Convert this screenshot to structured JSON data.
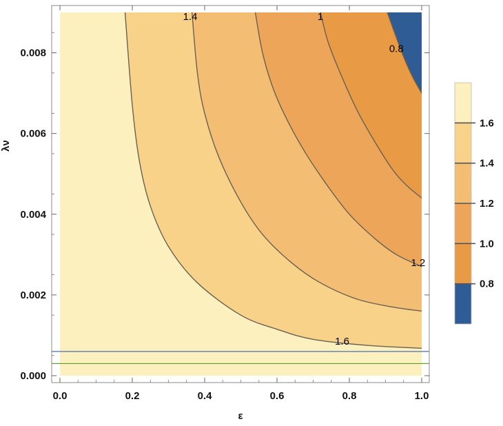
{
  "chart_data": {
    "type": "contour",
    "title": "",
    "xlabel": "ε",
    "ylabel": "λν",
    "xlim": [
      0,
      1
    ],
    "ylim": [
      0,
      0.009
    ],
    "x_ticks": [
      "0.0",
      "0.2",
      "0.4",
      "0.6",
      "0.8",
      "1.0"
    ],
    "x_tick_values": [
      0,
      0.2,
      0.4,
      0.6,
      0.8,
      1.0
    ],
    "y_ticks": [
      "0.000",
      "0.002",
      "0.004",
      "0.006",
      "0.008"
    ],
    "y_tick_values": [
      0,
      0.002,
      0.004,
      0.006,
      0.008
    ],
    "grid": false,
    "contour_levels": [
      {
        "value": 1.6,
        "label": "1.6",
        "label_at": [
          0.78,
          0.00085
        ],
        "curve": [
          [
            0.18,
            0.009
          ],
          [
            0.2,
            0.0067
          ],
          [
            0.22,
            0.0053
          ],
          [
            0.25,
            0.0042
          ],
          [
            0.3,
            0.0032
          ],
          [
            0.38,
            0.0023
          ],
          [
            0.5,
            0.0015
          ],
          [
            0.6,
            0.00115
          ],
          [
            0.7,
            0.0009
          ],
          [
            0.85,
            0.00075
          ],
          [
            1.0,
            0.00068
          ]
        ]
      },
      {
        "value": 1.4,
        "label": "1.4",
        "label_at": [
          0.36,
          0.0089
        ],
        "curve": [
          [
            0.365,
            0.009
          ],
          [
            0.38,
            0.0075
          ],
          [
            0.4,
            0.0065
          ],
          [
            0.44,
            0.0054
          ],
          [
            0.5,
            0.0043
          ],
          [
            0.56,
            0.0035
          ],
          [
            0.64,
            0.0028
          ],
          [
            0.72,
            0.0023
          ],
          [
            0.82,
            0.0019
          ],
          [
            0.92,
            0.0017
          ],
          [
            1.0,
            0.0016
          ]
        ]
      },
      {
        "value": 1.2,
        "label": "1.2",
        "label_at": [
          0.99,
          0.0028
        ],
        "curve": [
          [
            0.54,
            0.009
          ],
          [
            0.56,
            0.008
          ],
          [
            0.59,
            0.0071
          ],
          [
            0.63,
            0.0063
          ],
          [
            0.68,
            0.0055
          ],
          [
            0.74,
            0.0047
          ],
          [
            0.8,
            0.004
          ],
          [
            0.87,
            0.0034
          ],
          [
            0.93,
            0.003
          ],
          [
            1.0,
            0.0027
          ]
        ]
      },
      {
        "value": 1.0,
        "label": "1",
        "label_at": [
          0.72,
          0.0089
        ],
        "curve": [
          [
            0.72,
            0.009
          ],
          [
            0.74,
            0.0083
          ],
          [
            0.77,
            0.0076
          ],
          [
            0.82,
            0.0066
          ],
          [
            0.87,
            0.0058
          ],
          [
            0.92,
            0.0051
          ],
          [
            0.96,
            0.0047
          ],
          [
            1.0,
            0.0044
          ]
        ]
      },
      {
        "value": 0.8,
        "label": "0.8",
        "label_at": [
          0.93,
          0.0081
        ],
        "curve": [
          [
            0.905,
            0.009
          ],
          [
            0.925,
            0.0085
          ],
          [
            0.95,
            0.0079
          ],
          [
            0.975,
            0.0074
          ],
          [
            1.0,
            0.007
          ]
        ]
      }
    ],
    "horizontal_lines": [
      {
        "y": 0.0006,
        "color": "#4a6fb0"
      },
      {
        "y": 0.0003,
        "color": "#5a9a2a"
      }
    ],
    "region_colors": [
      "#fdf0bf",
      "#f9d28a",
      "#f3bd74",
      "#eda659",
      "#e89a45",
      "#2f5c94"
    ],
    "colorbar": {
      "labels": [
        "1.6",
        "1.4",
        "1.2",
        "1.0",
        "0.8"
      ],
      "levels": [
        1.6,
        1.4,
        1.2,
        1.0,
        0.8
      ],
      "range": [
        0.6,
        1.8
      ],
      "bands": [
        {
          "from": 1.6,
          "to": 1.8,
          "color": "#fdf0bf"
        },
        {
          "from": 1.4,
          "to": 1.6,
          "color": "#f9d28a"
        },
        {
          "from": 1.2,
          "to": 1.4,
          "color": "#f3bd74"
        },
        {
          "from": 1.0,
          "to": 1.2,
          "color": "#eda659"
        },
        {
          "from": 0.8,
          "to": 1.0,
          "color": "#e89a45"
        },
        {
          "from": 0.6,
          "to": 0.8,
          "color": "#2f5c94"
        }
      ]
    }
  }
}
